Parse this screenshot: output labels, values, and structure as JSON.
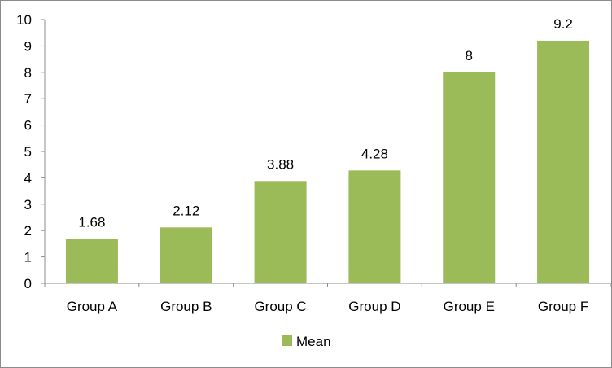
{
  "chart_data": {
    "type": "bar",
    "categories": [
      "Group A",
      "Group B",
      "Group C",
      "Group D",
      "Group E",
      "Group F"
    ],
    "series": [
      {
        "name": "Mean",
        "values": [
          1.68,
          2.12,
          3.88,
          4.28,
          8,
          9.2
        ],
        "data_labels": [
          "1.68",
          "2.12",
          "3.88",
          "4.28",
          "8",
          "9.2"
        ],
        "color": "#9bbb59"
      }
    ],
    "ylim": [
      0,
      10
    ],
    "y_ticks": [
      0,
      1,
      2,
      3,
      4,
      5,
      6,
      7,
      8,
      9,
      10
    ],
    "y_tick_labels": [
      "0",
      "1",
      "2",
      "3",
      "4",
      "5",
      "6",
      "7",
      "8",
      "9",
      "10"
    ],
    "grid": false,
    "legend": {
      "position": "bottom",
      "entries": [
        "Mean"
      ]
    },
    "colors": {
      "bar": "#9bbb59",
      "axis": "#8c8c8c",
      "frame": "#8c8c8c"
    }
  }
}
